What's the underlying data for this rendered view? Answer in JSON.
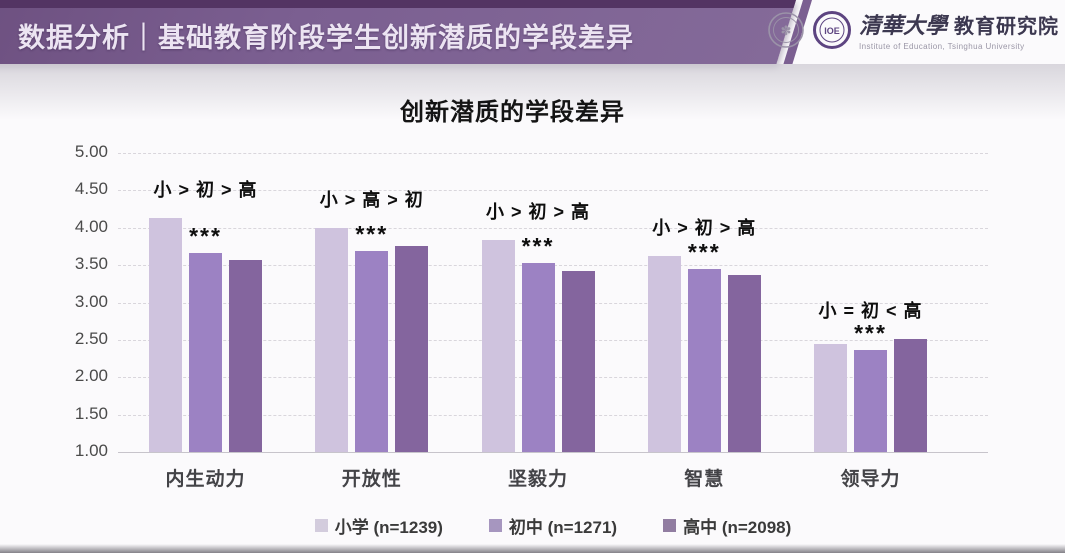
{
  "header": {
    "title": "数据分析｜基础教育阶段学生创新潜质的学段差异",
    "logo": {
      "cn_name": "清華大學",
      "cn_dept": "教育研究院",
      "en_name": "Institute of Education, Tsinghua University"
    }
  },
  "chart_data": {
    "type": "bar",
    "title": "创新潜质的学段差异",
    "categories": [
      "内生动力",
      "开放性",
      "坚毅力",
      "智慧",
      "领导力"
    ],
    "series": [
      {
        "name": "小学 (n=1239)",
        "color": "#cfc3de",
        "values": [
          4.13,
          4.0,
          3.84,
          3.62,
          2.44
        ]
      },
      {
        "name": "初中 (n=1271)",
        "color": "#9c82c3",
        "values": [
          3.66,
          3.69,
          3.53,
          3.45,
          2.36
        ]
      },
      {
        "name": "高中 (n=2098)",
        "color": "#84659e",
        "values": [
          3.57,
          3.76,
          3.42,
          3.37,
          2.51
        ]
      }
    ],
    "annotations": [
      "小 > 初 > 高",
      "小 > 高 > 初",
      "小 > 初 > 高",
      "小 > 初 > 高",
      "小 = 初 < 高"
    ],
    "significance": [
      "***",
      "***",
      "***",
      "***",
      "***"
    ],
    "y_axis": {
      "min": 1.0,
      "max": 5.0,
      "step": 0.5,
      "ticks": [
        "5.00",
        "4.50",
        "4.00",
        "3.50",
        "3.00",
        "2.50",
        "2.00",
        "1.50",
        "1.00"
      ]
    },
    "grid": "horizontal dashed",
    "legend_position": "bottom"
  }
}
